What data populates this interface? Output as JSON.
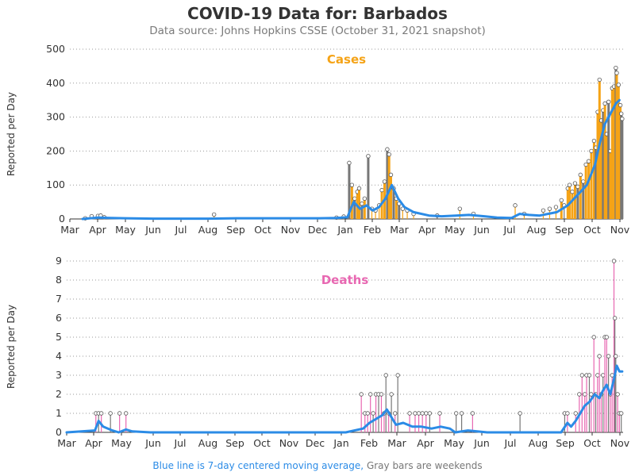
{
  "header": {
    "title": "COVID-19 Data for: Barbados",
    "subtitle": "Data source: Johns Hopkins CSSE (October 31, 2021 snapshot)"
  },
  "footer": {
    "moving_avg_note": "Blue line is 7-day centered moving average,",
    "weekend_note": "Gray bars are weekends"
  },
  "colors": {
    "cases": "#f5a316",
    "deaths": "#e868b2",
    "weekend": "#777777",
    "moving_average": "#2b8be6"
  },
  "chart_data": [
    {
      "type": "bar",
      "title": "Cases",
      "ylabel": "Reported per Day",
      "ylim": [
        0,
        500
      ],
      "yticks": [
        "0",
        "100",
        "200",
        "300",
        "400",
        "500"
      ],
      "xticks": [
        "Mar",
        "Apr",
        "May",
        "Jun",
        "Jul",
        "Aug",
        "Sep",
        "Oct",
        "Nov",
        "Dec",
        "Jan",
        "Feb",
        "Mar",
        "Apr",
        "May",
        "Jun",
        "Jul",
        "Aug",
        "Sep",
        "Oct",
        "Nov"
      ],
      "x_range": [
        "2020-03-01",
        "2021-11-01"
      ],
      "grid": "horizontal dotted",
      "series": [
        {
          "name": "7-day centered moving average",
          "x": [
            "2020-03-15",
            "2020-04-01",
            "2020-04-15",
            "2020-05-01",
            "2020-06-01",
            "2020-07-01",
            "2020-08-01",
            "2020-09-01",
            "2020-10-01",
            "2020-11-01",
            "2020-12-01",
            "2020-12-20",
            "2021-01-01",
            "2021-01-08",
            "2021-01-15",
            "2021-01-22",
            "2021-01-29",
            "2021-02-05",
            "2021-02-12",
            "2021-02-19",
            "2021-02-26",
            "2021-03-05",
            "2021-03-15",
            "2021-04-01",
            "2021-04-15",
            "2021-05-01",
            "2021-05-15",
            "2021-06-01",
            "2021-06-15",
            "2021-07-01",
            "2021-07-10",
            "2021-07-20",
            "2021-08-01",
            "2021-08-10",
            "2021-08-20",
            "2021-09-01",
            "2021-09-08",
            "2021-09-15",
            "2021-09-22",
            "2021-10-01",
            "2021-10-06",
            "2021-10-12",
            "2021-10-18",
            "2021-10-24",
            "2021-10-28"
          ],
          "values": [
            0,
            4,
            3,
            2,
            1,
            1,
            1,
            2,
            2,
            2,
            2,
            3,
            5,
            50,
            30,
            40,
            25,
            35,
            60,
            100,
            60,
            35,
            20,
            10,
            8,
            10,
            12,
            8,
            4,
            3,
            15,
            12,
            10,
            15,
            20,
            40,
            60,
            80,
            100,
            160,
            220,
            280,
            310,
            340,
            350
          ]
        }
      ],
      "bars": [
        {
          "x": "2020-03-18",
          "value": 2
        },
        {
          "x": "2020-03-25",
          "value": 8
        },
        {
          "x": "2020-04-01",
          "value": 9
        },
        {
          "x": "2020-04-04",
          "value": 10
        },
        {
          "x": "2020-04-08",
          "value": 5
        },
        {
          "x": "2020-08-07",
          "value": 13
        },
        {
          "x": "2020-12-20",
          "value": 4
        },
        {
          "x": "2020-12-28",
          "value": 7
        },
        {
          "x": "2021-01-03",
          "value": 165
        },
        {
          "x": "2021-01-06",
          "value": 100
        },
        {
          "x": "2021-01-09",
          "value": 60
        },
        {
          "x": "2021-01-12",
          "value": 80
        },
        {
          "x": "2021-01-14",
          "value": 90
        },
        {
          "x": "2021-01-17",
          "value": 45
        },
        {
          "x": "2021-01-20",
          "value": 60
        },
        {
          "x": "2021-01-24",
          "value": 185
        },
        {
          "x": "2021-01-28",
          "value": 30
        },
        {
          "x": "2021-02-01",
          "value": 25
        },
        {
          "x": "2021-02-05",
          "value": 40
        },
        {
          "x": "2021-02-08",
          "value": 85
        },
        {
          "x": "2021-02-11",
          "value": 110
        },
        {
          "x": "2021-02-14",
          "value": 205
        },
        {
          "x": "2021-02-16",
          "value": 190
        },
        {
          "x": "2021-02-18",
          "value": 130
        },
        {
          "x": "2021-02-21",
          "value": 90
        },
        {
          "x": "2021-02-24",
          "value": 60
        },
        {
          "x": "2021-02-27",
          "value": 45
        },
        {
          "x": "2021-03-03",
          "value": 30
        },
        {
          "x": "2021-03-08",
          "value": 25
        },
        {
          "x": "2021-03-15",
          "value": 15
        },
        {
          "x": "2021-04-10",
          "value": 10
        },
        {
          "x": "2021-05-05",
          "value": 30
        },
        {
          "x": "2021-05-20",
          "value": 15
        },
        {
          "x": "2021-07-05",
          "value": 40
        },
        {
          "x": "2021-07-15",
          "value": 15
        },
        {
          "x": "2021-08-05",
          "value": 25
        },
        {
          "x": "2021-08-12",
          "value": 30
        },
        {
          "x": "2021-08-19",
          "value": 35
        },
        {
          "x": "2021-08-25",
          "value": 55
        },
        {
          "x": "2021-08-28",
          "value": 40
        },
        {
          "x": "2021-09-01",
          "value": 90
        },
        {
          "x": "2021-09-03",
          "value": 100
        },
        {
          "x": "2021-09-06",
          "value": 80
        },
        {
          "x": "2021-09-09",
          "value": 105
        },
        {
          "x": "2021-09-12",
          "value": 95
        },
        {
          "x": "2021-09-15",
          "value": 130
        },
        {
          "x": "2021-09-18",
          "value": 110
        },
        {
          "x": "2021-09-21",
          "value": 160
        },
        {
          "x": "2021-09-24",
          "value": 170
        },
        {
          "x": "2021-09-27",
          "value": 200
        },
        {
          "x": "2021-09-30",
          "value": 230
        },
        {
          "x": "2021-10-02",
          "value": 210
        },
        {
          "x": "2021-10-04",
          "value": 315
        },
        {
          "x": "2021-10-06",
          "value": 410
        },
        {
          "x": "2021-10-08",
          "value": 290
        },
        {
          "x": "2021-10-10",
          "value": 320
        },
        {
          "x": "2021-10-12",
          "value": 340
        },
        {
          "x": "2021-10-14",
          "value": 250
        },
        {
          "x": "2021-10-16",
          "value": 345
        },
        {
          "x": "2021-10-18",
          "value": 200
        },
        {
          "x": "2021-10-20",
          "value": 385
        },
        {
          "x": "2021-10-22",
          "value": 390
        },
        {
          "x": "2021-10-24",
          "value": 445
        },
        {
          "x": "2021-10-25",
          "value": 430
        },
        {
          "x": "2021-10-27",
          "value": 395
        },
        {
          "x": "2021-10-29",
          "value": 335
        },
        {
          "x": "2021-10-30",
          "value": 310
        },
        {
          "x": "2021-10-31",
          "value": 295
        }
      ]
    },
    {
      "type": "bar",
      "title": "Deaths",
      "ylabel": "Reported per Day",
      "ylim": [
        0,
        9
      ],
      "yticks": [
        "0",
        "1",
        "2",
        "3",
        "4",
        "5",
        "6",
        "7",
        "8",
        "9"
      ],
      "xticks": [
        "Mar",
        "Apr",
        "May",
        "Jun",
        "Jul",
        "Aug",
        "Sep",
        "Oct",
        "Nov",
        "Dec",
        "Jan",
        "Feb",
        "Mar",
        "Apr",
        "May",
        "Jun",
        "Jul",
        "Aug",
        "Sep",
        "Oct",
        "Nov"
      ],
      "x_range": [
        "2020-03-01",
        "2021-11-01"
      ],
      "grid": "horizontal dotted",
      "series": [
        {
          "name": "7-day centered moving average",
          "x": [
            "2020-03-01",
            "2020-04-01",
            "2020-04-05",
            "2020-04-10",
            "2020-04-20",
            "2020-04-27",
            "2020-05-05",
            "2020-05-12",
            "2020-06-01",
            "2021-01-01",
            "2021-01-20",
            "2021-01-27",
            "2021-02-03",
            "2021-02-10",
            "2021-02-15",
            "2021-02-20",
            "2021-02-25",
            "2021-03-05",
            "2021-03-15",
            "2021-03-25",
            "2021-04-05",
            "2021-04-15",
            "2021-04-25",
            "2021-05-01",
            "2021-05-15",
            "2021-05-25",
            "2021-06-05",
            "2021-07-01",
            "2021-08-25",
            "2021-09-01",
            "2021-09-05",
            "2021-09-10",
            "2021-09-15",
            "2021-09-20",
            "2021-09-25",
            "2021-10-01",
            "2021-10-06",
            "2021-10-10",
            "2021-10-14",
            "2021-10-18",
            "2021-10-22",
            "2021-10-25",
            "2021-10-28",
            "2021-10-31"
          ],
          "values": [
            0,
            0.1,
            0.6,
            0.3,
            0.1,
            0,
            0.15,
            0.05,
            0,
            0,
            0.2,
            0.5,
            0.7,
            0.9,
            1.2,
            0.8,
            0.4,
            0.5,
            0.3,
            0.3,
            0.2,
            0.3,
            0.2,
            0,
            0.1,
            0.05,
            0,
            0,
            0,
            0.5,
            0.3,
            0.6,
            1.0,
            1.4,
            1.6,
            2.0,
            1.8,
            2.2,
            2.5,
            2.0,
            2.8,
            3.5,
            3.2,
            3.2
          ]
        }
      ],
      "bars": [
        {
          "x": "2020-04-02",
          "value": 1
        },
        {
          "x": "2020-04-05",
          "value": 1
        },
        {
          "x": "2020-04-08",
          "value": 1
        },
        {
          "x": "2020-04-18",
          "value": 1
        },
        {
          "x": "2020-04-28",
          "value": 1
        },
        {
          "x": "2020-05-05",
          "value": 1
        },
        {
          "x": "2021-01-18",
          "value": 2
        },
        {
          "x": "2021-01-22",
          "value": 1
        },
        {
          "x": "2021-01-25",
          "value": 1
        },
        {
          "x": "2021-01-28",
          "value": 2
        },
        {
          "x": "2021-01-31",
          "value": 1
        },
        {
          "x": "2021-02-03",
          "value": 2
        },
        {
          "x": "2021-02-06",
          "value": 2
        },
        {
          "x": "2021-02-09",
          "value": 2
        },
        {
          "x": "2021-02-12",
          "value": 1
        },
        {
          "x": "2021-02-14",
          "value": 3
        },
        {
          "x": "2021-02-17",
          "value": 1
        },
        {
          "x": "2021-02-20",
          "value": 2
        },
        {
          "x": "2021-02-24",
          "value": 1
        },
        {
          "x": "2021-02-27",
          "value": 3
        },
        {
          "x": "2021-03-12",
          "value": 1
        },
        {
          "x": "2021-03-18",
          "value": 1
        },
        {
          "x": "2021-03-22",
          "value": 1
        },
        {
          "x": "2021-03-26",
          "value": 1
        },
        {
          "x": "2021-03-30",
          "value": 1
        },
        {
          "x": "2021-04-03",
          "value": 1
        },
        {
          "x": "2021-04-14",
          "value": 1
        },
        {
          "x": "2021-05-02",
          "value": 1
        },
        {
          "x": "2021-05-08",
          "value": 1
        },
        {
          "x": "2021-05-20",
          "value": 1
        },
        {
          "x": "2021-07-11",
          "value": 1
        },
        {
          "x": "2021-08-29",
          "value": 1
        },
        {
          "x": "2021-09-01",
          "value": 1
        },
        {
          "x": "2021-09-10",
          "value": 1
        },
        {
          "x": "2021-09-14",
          "value": 2
        },
        {
          "x": "2021-09-17",
          "value": 3
        },
        {
          "x": "2021-09-20",
          "value": 2
        },
        {
          "x": "2021-09-22",
          "value": 3
        },
        {
          "x": "2021-09-25",
          "value": 3
        },
        {
          "x": "2021-09-27",
          "value": 2
        },
        {
          "x": "2021-09-30",
          "value": 5
        },
        {
          "x": "2021-10-02",
          "value": 2
        },
        {
          "x": "2021-10-04",
          "value": 3
        },
        {
          "x": "2021-10-06",
          "value": 4
        },
        {
          "x": "2021-10-08",
          "value": 2
        },
        {
          "x": "2021-10-10",
          "value": 3
        },
        {
          "x": "2021-10-12",
          "value": 5
        },
        {
          "x": "2021-10-14",
          "value": 5
        },
        {
          "x": "2021-10-16",
          "value": 4
        },
        {
          "x": "2021-10-18",
          "value": 2
        },
        {
          "x": "2021-10-20",
          "value": 3
        },
        {
          "x": "2021-10-22",
          "value": 9
        },
        {
          "x": "2021-10-23",
          "value": 6
        },
        {
          "x": "2021-10-24",
          "value": 4
        },
        {
          "x": "2021-10-26",
          "value": 2
        },
        {
          "x": "2021-10-28",
          "value": 1
        },
        {
          "x": "2021-10-30",
          "value": 1
        }
      ]
    }
  ]
}
